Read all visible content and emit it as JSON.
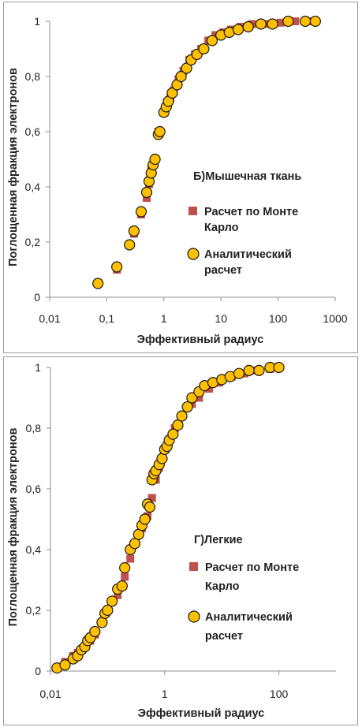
{
  "chart_data": [
    {
      "type": "scatter",
      "annotation": "Б)Мышечная ткань",
      "xlabel": "Эффективный радиус",
      "ylabel": "Поглощенная фракция электронов",
      "xscale": "log",
      "xlim": [
        0.01,
        1000
      ],
      "ylim": [
        0,
        1
      ],
      "xticks": [
        "0,01",
        "0,1",
        "1",
        "10",
        "100",
        "1000"
      ],
      "yticks": [
        "0",
        "0,2",
        "0,4",
        "0,6",
        "0,8",
        "1"
      ],
      "legend_position": "right-middle",
      "series": [
        {
          "name": "Расчет по Монте Карло",
          "marker": "square",
          "color": "#c0504d",
          "x": [
            0.07,
            0.15,
            0.25,
            0.3,
            0.4,
            0.5,
            0.55,
            0.6,
            0.7,
            0.8,
            1.0,
            1.1,
            1.3,
            1.5,
            1.8,
            2.2,
            2.8,
            3.5,
            4.5,
            6,
            8,
            11,
            15,
            22,
            35,
            60,
            110,
            200,
            420
          ],
          "y": [
            0.05,
            0.1,
            0.19,
            0.23,
            0.3,
            0.36,
            0.41,
            0.46,
            0.5,
            0.6,
            0.67,
            0.69,
            0.72,
            0.75,
            0.79,
            0.82,
            0.86,
            0.88,
            0.9,
            0.93,
            0.95,
            0.96,
            0.97,
            0.98,
            0.99,
            0.99,
            0.995,
            1.0,
            1.0
          ]
        },
        {
          "name": "Аналитический расчет",
          "marker": "circle",
          "color": "#ffc000",
          "x": [
            0.07,
            0.15,
            0.25,
            0.3,
            0.4,
            0.5,
            0.55,
            0.6,
            0.65,
            0.7,
            0.8,
            0.85,
            1.0,
            1.1,
            1.2,
            1.4,
            1.7,
            2.0,
            2.5,
            3.0,
            3.8,
            5,
            7,
            10,
            14,
            20,
            30,
            50,
            80,
            150,
            300,
            450
          ],
          "y": [
            0.05,
            0.11,
            0.19,
            0.24,
            0.31,
            0.38,
            0.42,
            0.45,
            0.48,
            0.5,
            0.59,
            0.6,
            0.67,
            0.69,
            0.71,
            0.74,
            0.77,
            0.8,
            0.83,
            0.86,
            0.88,
            0.9,
            0.93,
            0.95,
            0.96,
            0.97,
            0.98,
            0.99,
            0.99,
            1.0,
            1.0,
            1.0
          ]
        }
      ]
    },
    {
      "type": "scatter",
      "annotation": "Г)Легкие",
      "xlabel": "Эффективный радиус",
      "ylabel": "Поглощенная фракция электронов",
      "xscale": "log",
      "xlim": [
        0.01,
        1000
      ],
      "ylim": [
        0,
        1
      ],
      "xticks": [
        "0,01",
        "1",
        "100"
      ],
      "yticks": [
        "0",
        "0,2",
        "0,4",
        "0,6",
        "0,8",
        "1"
      ],
      "legend_position": "right-middle",
      "series": [
        {
          "name": "Расчет по Монте Карло",
          "marker": "square",
          "color": "#c0504d",
          "x": [
            0.013,
            0.018,
            0.025,
            0.03,
            0.04,
            0.05,
            0.06,
            0.1,
            0.15,
            0.2,
            0.25,
            0.3,
            0.4,
            0.5,
            0.6,
            0.7,
            0.8,
            0.9,
            1.0,
            1.2,
            1.5,
            2.0,
            3.0,
            4.0,
            6.0,
            9.0,
            15,
            25,
            40,
            70,
            100
          ],
          "y": [
            0.01,
            0.03,
            0.05,
            0.06,
            0.08,
            0.1,
            0.12,
            0.2,
            0.25,
            0.31,
            0.37,
            0.42,
            0.47,
            0.51,
            0.57,
            0.63,
            0.67,
            0.7,
            0.73,
            0.76,
            0.8,
            0.84,
            0.88,
            0.9,
            0.93,
            0.95,
            0.97,
            0.98,
            0.99,
            0.995,
            1.0
          ]
        },
        {
          "name": "Аналитический расчет",
          "marker": "circle",
          "color": "#ffc000",
          "x": [
            0.013,
            0.018,
            0.025,
            0.03,
            0.035,
            0.04,
            0.045,
            0.05,
            0.06,
            0.08,
            0.09,
            0.1,
            0.12,
            0.15,
            0.18,
            0.2,
            0.25,
            0.3,
            0.35,
            0.4,
            0.45,
            0.5,
            0.55,
            0.6,
            0.65,
            0.7,
            0.8,
            0.9,
            1.0,
            1.1,
            1.2,
            1.4,
            1.7,
            2.0,
            2.5,
            3.0,
            4.0,
            5.0,
            7.0,
            10,
            14,
            20,
            30,
            45,
            70,
            100
          ],
          "y": [
            0.01,
            0.02,
            0.04,
            0.05,
            0.07,
            0.08,
            0.1,
            0.11,
            0.13,
            0.16,
            0.19,
            0.2,
            0.23,
            0.27,
            0.28,
            0.34,
            0.4,
            0.42,
            0.45,
            0.48,
            0.5,
            0.55,
            0.54,
            0.63,
            0.65,
            0.66,
            0.68,
            0.7,
            0.73,
            0.74,
            0.76,
            0.78,
            0.81,
            0.84,
            0.87,
            0.9,
            0.92,
            0.94,
            0.95,
            0.96,
            0.97,
            0.98,
            0.99,
            0.99,
            1.0,
            1.0
          ]
        }
      ]
    }
  ]
}
